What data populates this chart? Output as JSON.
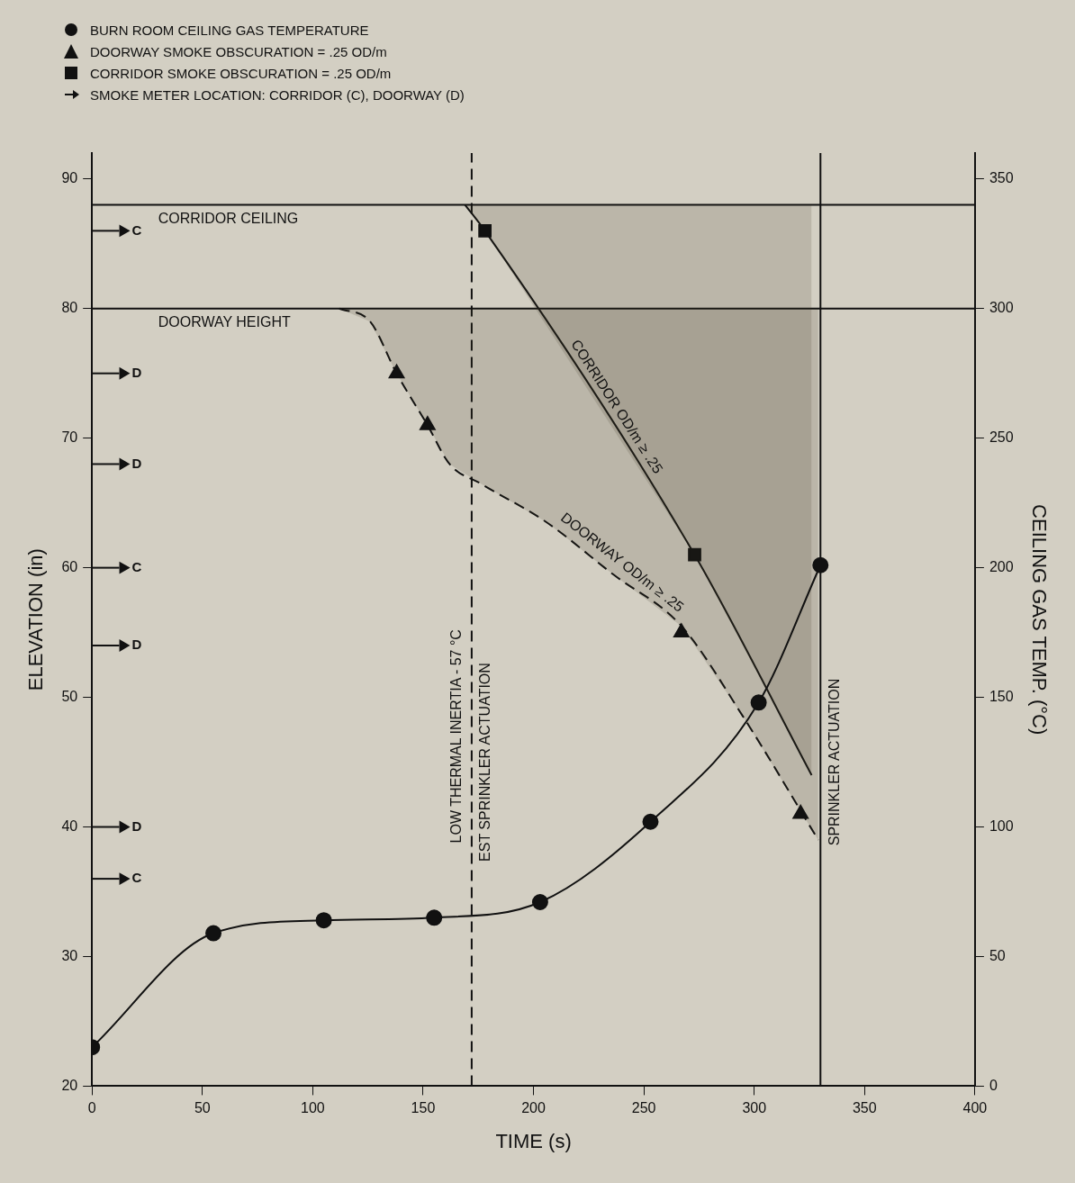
{
  "chart_data": {
    "type": "line",
    "xlabel": "TIME (s)",
    "ylabel": "ELEVATION (in)",
    "y2label": "CEILING GAS TEMP. (°C)",
    "xlim": [
      0,
      400
    ],
    "xticks": [
      0,
      50,
      100,
      150,
      200,
      250,
      300,
      350,
      400
    ],
    "ylim": [
      20,
      92
    ],
    "yticks": [
      20,
      30,
      40,
      50,
      60,
      70,
      80,
      90
    ],
    "y2lim": [
      0,
      360
    ],
    "y2ticks": [
      0,
      50,
      100,
      150,
      200,
      250,
      300,
      350
    ],
    "legend": "top left",
    "series": [
      {
        "name": "BURN ROOM CEILING GAS TEMPERATURE",
        "type": "line",
        "axis": "y2",
        "color": "#111111",
        "marker": "circle",
        "line_style": "solid",
        "x": [
          0,
          55,
          105,
          155,
          203,
          253,
          302,
          330
        ],
        "values": [
          15,
          59,
          64,
          65,
          71,
          102,
          148,
          201
        ]
      },
      {
        "name": "DOORWAY SMOKE OBSCURATION = .25 OD/m",
        "type": "scatter",
        "color": "#111111",
        "marker": "triangle",
        "x": [
          138,
          152,
          267,
          321
        ],
        "values": [
          75,
          71,
          55,
          41
        ]
      },
      {
        "type": "line",
        "color": "#111111",
        "marker": "none",
        "line_style": "dashed",
        "x": [
          112,
          126,
          138,
          152,
          162,
          176,
          206,
          236,
          267,
          295,
          329
        ],
        "values": [
          80,
          79,
          75,
          71,
          68,
          66.5,
          63.5,
          59.5,
          55.5,
          48.5,
          39
        ],
        "lower": [
          80,
          79,
          75,
          71,
          68,
          66.5,
          63.5,
          59.5,
          55.5,
          48.5,
          39
        ],
        "upper": [
          80,
          80,
          80,
          80,
          80,
          80,
          80,
          80,
          80,
          80,
          80
        ]
      },
      {
        "name": "CORRIDOR SMOKE OBSCURATION = .25 OD/m",
        "type": "scatter",
        "color": "#111111",
        "marker": "square",
        "x": [
          178,
          273
        ],
        "values": [
          86,
          61
        ]
      },
      {
        "type": "line",
        "color": "#111111",
        "marker": "none",
        "line_style": "solid",
        "x": [
          169,
          178,
          273,
          326
        ],
        "values": [
          88,
          86,
          61,
          44
        ],
        "lower": [
          88,
          86,
          61,
          44
        ],
        "upper": [
          88,
          88,
          88,
          88
        ]
      },
      {
        "name": "SMOKE METER LOCATION: CORRIDOR (C), DOORWAY (D)",
        "type": "scatter",
        "color": "#111111",
        "marker": "triangle",
        "x": [
          14,
          14,
          14,
          14,
          14,
          14,
          14
        ],
        "values": [
          86,
          75,
          68,
          60,
          54,
          40,
          36
        ],
        "value_labels": [
          "C",
          "D",
          "D",
          "C",
          "D",
          "D",
          "C"
        ]
      }
    ],
    "ref_lines": [
      {
        "axis": "x",
        "value": 330,
        "label": "SPRINKLER ACTUATION",
        "line_style": "solid"
      },
      {
        "axis": "x",
        "value": 172,
        "label": "EST SPRINKLER ACTUATION",
        "line_style": "dashed"
      },
      {
        "axis": "y",
        "value": 88,
        "label": "CORRIDOR CEILING",
        "line_style": "solid"
      },
      {
        "axis": "y",
        "value": 80,
        "label": "DOORWAY HEIGHT",
        "line_style": "solid"
      }
    ],
    "annotations": [
      {
        "text": "LOW THERMAL INERTIA - 57 °C",
        "x": 172,
        "y": 47
      },
      {
        "text": "CORRIDOR OD/m ≥ .25",
        "x": 232,
        "y": 71.8
      },
      {
        "text": "DOORWAY OD/m ≥ .25",
        "x": 236,
        "y": 59.5
      }
    ]
  }
}
